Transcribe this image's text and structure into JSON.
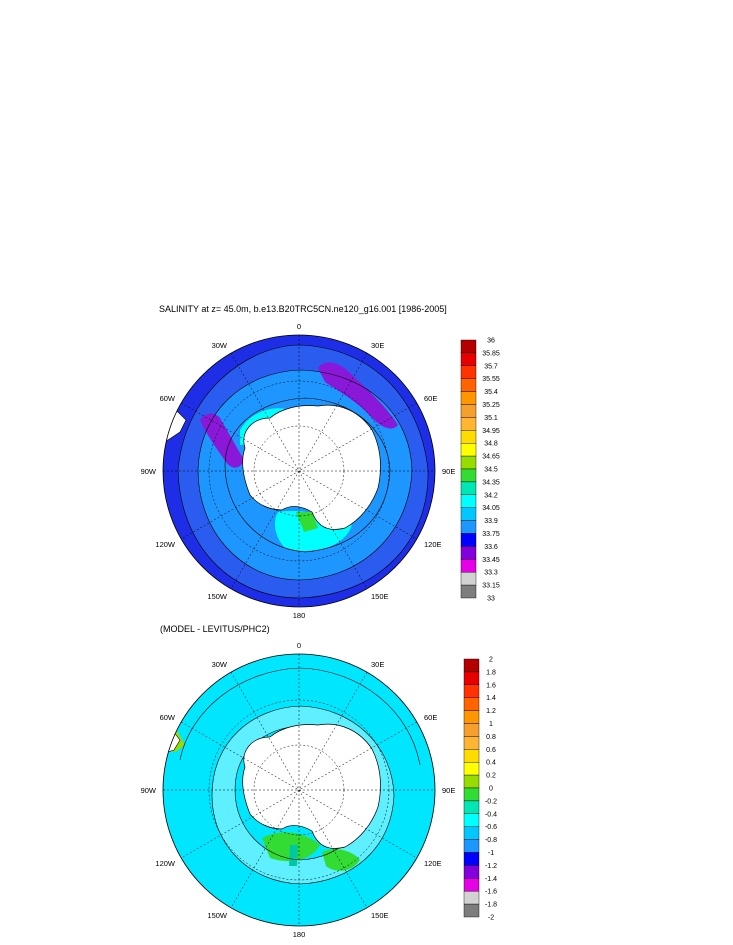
{
  "titles": {
    "main": "SALINITY at z=  45.0m, b.e13.B20TRC5CN.ne120_g16.001 [1986-2005]",
    "difference": "(MODEL - LEVITUS/PHC2)"
  },
  "longitude_labels": [
    "0",
    "30E",
    "60E",
    "90E",
    "120E",
    "150E",
    "180",
    "150W",
    "120W",
    "90W",
    "60W",
    "30W"
  ],
  "salinity_colorbar": {
    "labels": [
      "36",
      "35.85",
      "35.7",
      "35.55",
      "35.4",
      "35.25",
      "35.1",
      "34.95",
      "34.8",
      "34.65",
      "34.5",
      "34.35",
      "34.2",
      "34.05",
      "33.9",
      "33.75",
      "33.6",
      "33.45",
      "33.3",
      "33.15",
      "33"
    ],
    "colors": [
      "#b40000",
      "#e60000",
      "#ff3200",
      "#ff6400",
      "#ff9600",
      "#f5a02d",
      "#ffb432",
      "#ffdc00",
      "#ffff00",
      "#96dc00",
      "#32dc32",
      "#00e6b4",
      "#00ffff",
      "#00c8ff",
      "#1e96ff",
      "#0000ff",
      "#8200dc",
      "#e600e6",
      "#d2d2d2",
      "#7d7d7d"
    ]
  },
  "difference_colorbar": {
    "labels": [
      "2",
      "1.8",
      "1.6",
      "1.4",
      "1.2",
      "1",
      "0.8",
      "0.6",
      "0.4",
      "0.2",
      "0",
      "-0.2",
      "-0.4",
      "-0.6",
      "-0.8",
      "-1",
      "-1.2",
      "-1.4",
      "-1.6",
      "-1.8",
      "-2"
    ],
    "colors": [
      "#b40000",
      "#e60000",
      "#ff3200",
      "#ff6400",
      "#ff9600",
      "#f5a02d",
      "#ffb432",
      "#ffdc00",
      "#ffff00",
      "#96dc00",
      "#32dc32",
      "#00e6b4",
      "#00ffff",
      "#00c8ff",
      "#1e96ff",
      "#0000ff",
      "#8200dc",
      "#e600e6",
      "#d2d2d2",
      "#7d7d7d"
    ]
  },
  "colors": {
    "salinity_background": "#1e2ee6",
    "salinity_fresh_core": "#2a5cf0",
    "salinity_low_band": "#8a18d8",
    "salinity_coastal": "#1e96ff",
    "salinity_shelf": "#00ffff",
    "difference_background": "#00e6ff",
    "difference_mid": "#5ef0ff",
    "difference_positive": "#32dc32",
    "land": "#ffffff"
  }
}
